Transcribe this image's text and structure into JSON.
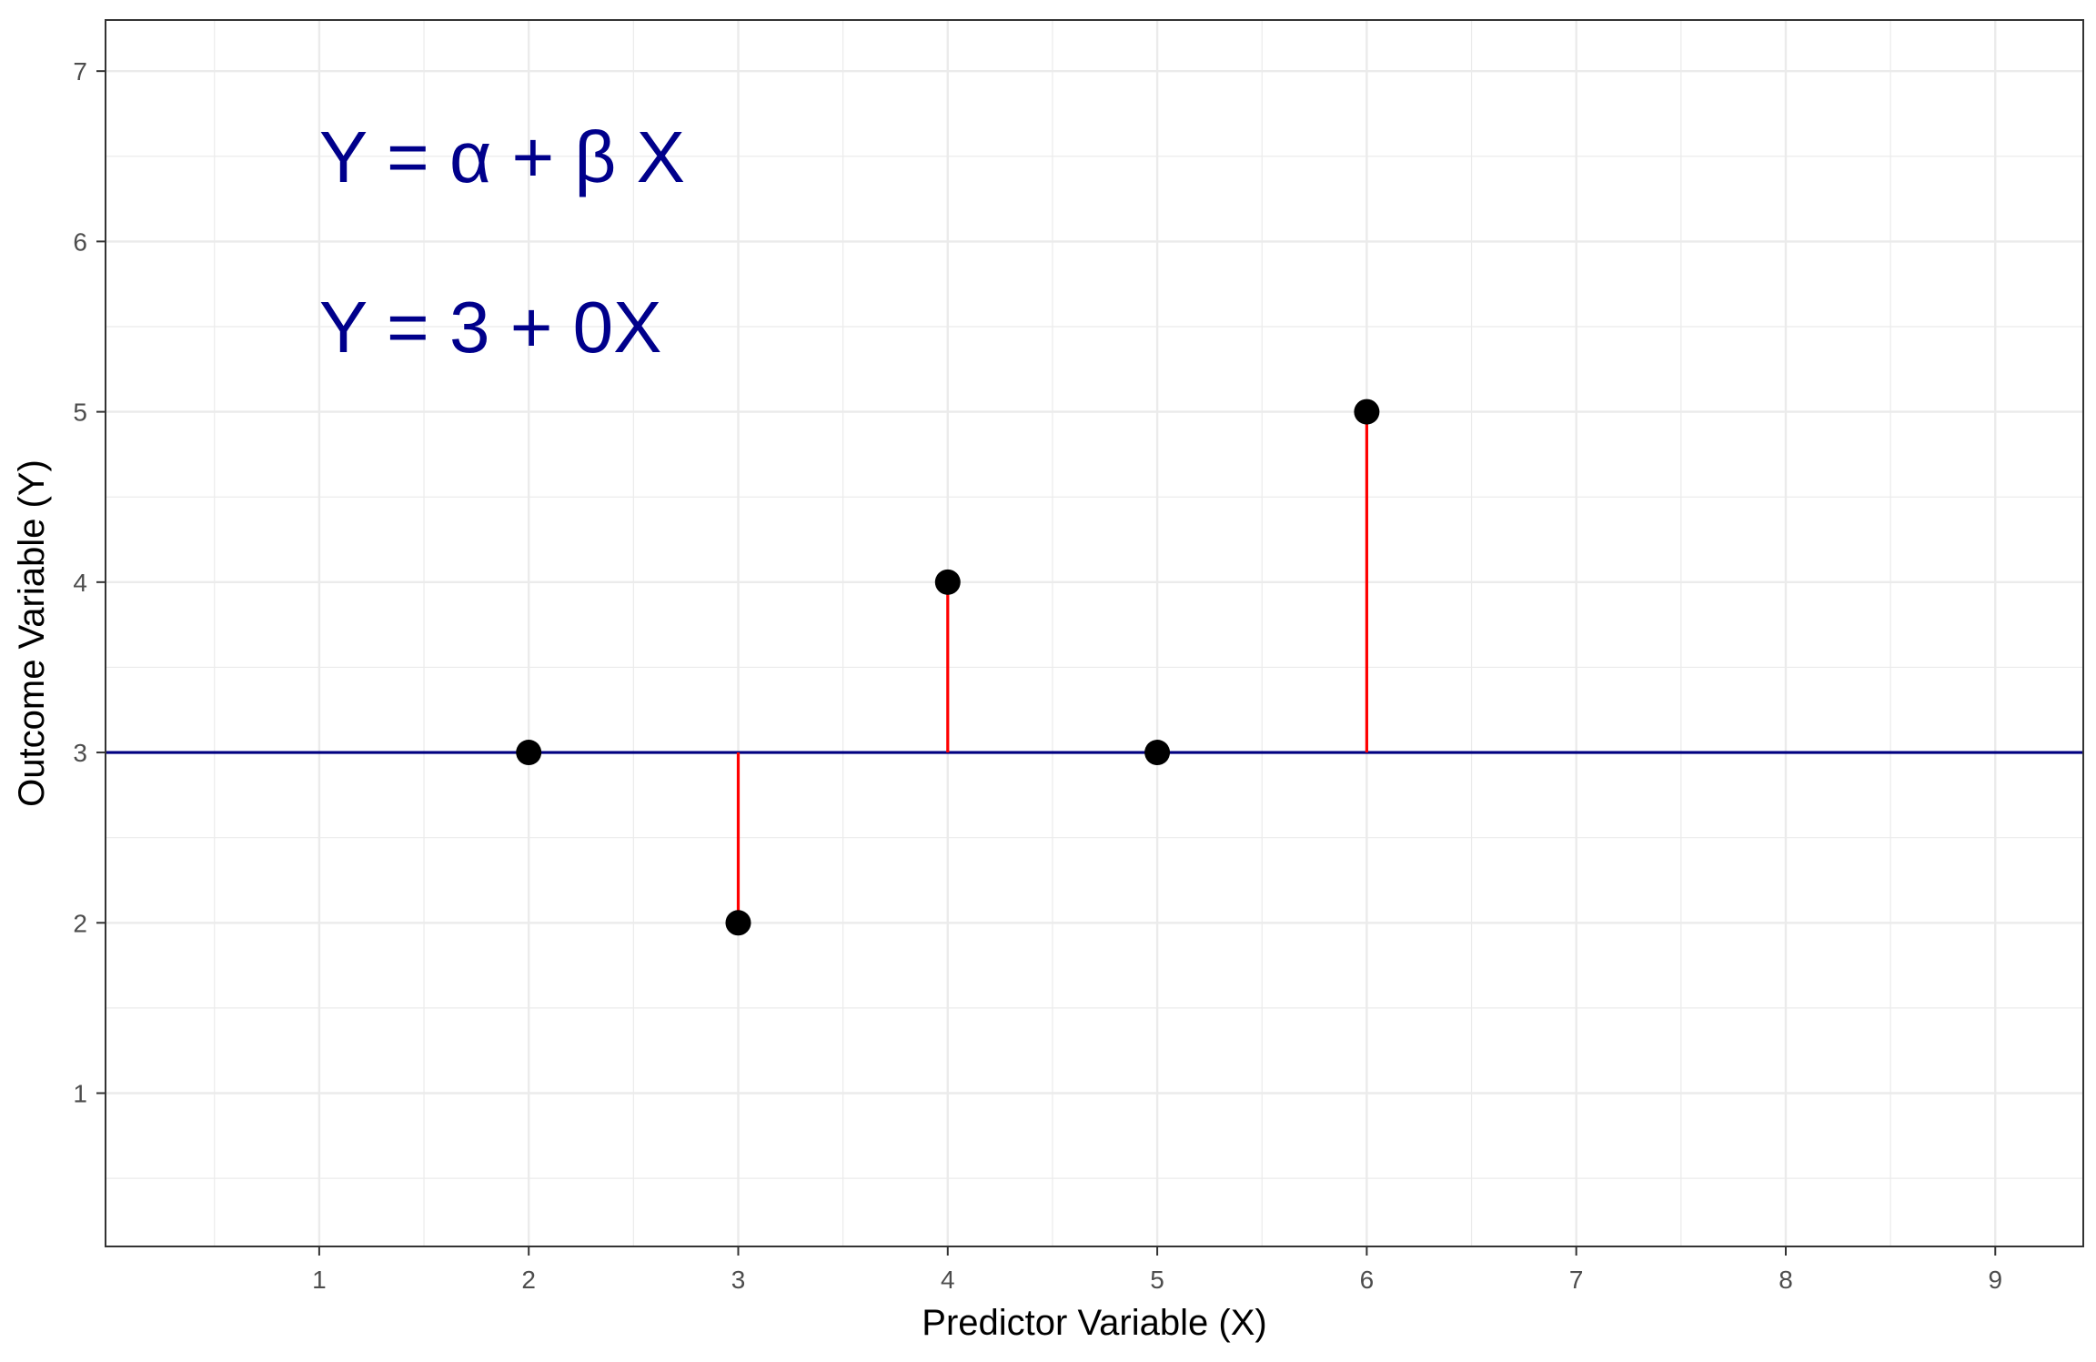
{
  "chart_data": {
    "type": "scatter",
    "title": "",
    "xlabel": "Predictor Variable (X)",
    "ylabel": "Outcome Variable (Y)",
    "xlim": [
      -0.02,
      9.42
    ],
    "ylim": [
      0.1,
      7.3
    ],
    "xticks": [
      1,
      2,
      3,
      4,
      5,
      6,
      7,
      8,
      9
    ],
    "yticks": [
      1,
      2,
      3,
      4,
      5,
      6,
      7
    ],
    "grid": true,
    "legend": "none",
    "points": [
      {
        "x": 2,
        "y": 3
      },
      {
        "x": 3,
        "y": 2
      },
      {
        "x": 4,
        "y": 4
      },
      {
        "x": 5,
        "y": 3
      },
      {
        "x": 6,
        "y": 5
      }
    ],
    "fit_line": {
      "intercept": 3,
      "slope": 0,
      "color": "#000080"
    },
    "residual_color": "#ff0000",
    "point_color": "#000000",
    "annotations": [
      {
        "text": "Y = α + β X",
        "x": 1.0,
        "y": 6.5,
        "color": "#00008b"
      },
      {
        "text": "Y = 3 + 0X",
        "x": 1.0,
        "y": 5.5,
        "color": "#00008b"
      }
    ]
  }
}
